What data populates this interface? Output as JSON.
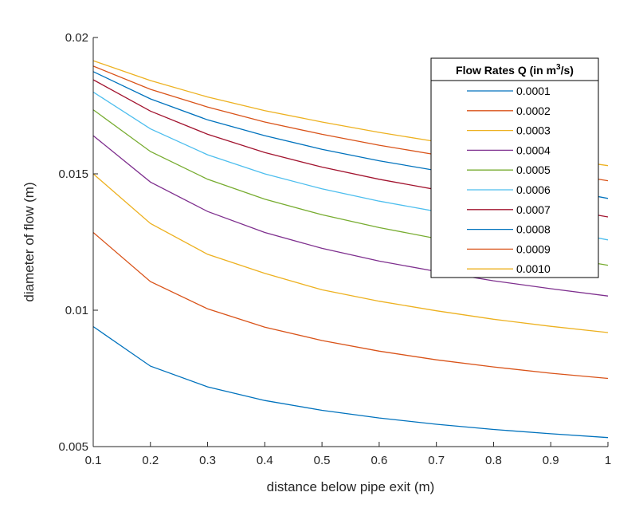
{
  "chart_data": {
    "type": "line",
    "title": "",
    "xlabel": "distance below pipe exit (m)",
    "ylabel": "diameter of flow (m)",
    "xlim": [
      0.1,
      1
    ],
    "ylim": [
      0.005,
      0.02
    ],
    "x_ticks": [
      "0.1",
      "0.2",
      "0.3",
      "0.4",
      "0.5",
      "0.6",
      "0.7",
      "0.8",
      "0.9",
      "1"
    ],
    "y_ticks": [
      "0.005",
      "0.01",
      "0.015",
      "0.02"
    ],
    "x": [
      0.1,
      0.2,
      0.3,
      0.4,
      0.5,
      0.6,
      0.7,
      0.8,
      0.9,
      1.0
    ],
    "legend": {
      "title_prefix": "Flow Rates Q (in m",
      "title_sup": "3",
      "title_suffix": "/s)",
      "location": "top-right"
    },
    "series": [
      {
        "name": "0.0001",
        "color": "#0072BD",
        "values": [
          0.0094,
          0.00795,
          0.00719,
          0.00669,
          0.00633,
          0.00605,
          0.00582,
          0.00563,
          0.00547,
          0.00533
        ]
      },
      {
        "name": "0.0002",
        "color": "#D95319",
        "values": [
          0.01285,
          0.01105,
          0.01005,
          0.00938,
          0.00889,
          0.0085,
          0.00818,
          0.00792,
          0.00769,
          0.0075
        ]
      },
      {
        "name": "0.0003",
        "color": "#EDB120",
        "values": [
          0.015,
          0.01318,
          0.01205,
          0.01135,
          0.01075,
          0.01033,
          0.00998,
          0.00967,
          0.00941,
          0.00918
        ]
      },
      {
        "name": "0.0004",
        "color": "#7E2F8E",
        "values": [
          0.0164,
          0.0147,
          0.01362,
          0.01285,
          0.01227,
          0.0118,
          0.01142,
          0.01108,
          0.01079,
          0.01052
        ]
      },
      {
        "name": "0.0005",
        "color": "#77AC30",
        "values": [
          0.01735,
          0.01582,
          0.0148,
          0.01407,
          0.0135,
          0.01303,
          0.01263,
          0.0123,
          0.012,
          0.01165
        ]
      },
      {
        "name": "0.0006",
        "color": "#4DBEEE",
        "values": [
          0.018,
          0.01665,
          0.0157,
          0.015,
          0.01445,
          0.014,
          0.01362,
          0.01328,
          0.01298,
          0.01258
        ]
      },
      {
        "name": "0.0007",
        "color": "#A2142F",
        "values": [
          0.01845,
          0.0173,
          0.01645,
          0.01578,
          0.01525,
          0.0148,
          0.01442,
          0.01408,
          0.01378,
          0.01342
        ]
      },
      {
        "name": "0.0008",
        "color": "#0072BD",
        "values": [
          0.01875,
          0.01775,
          0.01698,
          0.0164,
          0.0159,
          0.01548,
          0.01512,
          0.0148,
          0.0145,
          0.0141
        ]
      },
      {
        "name": "0.0009",
        "color": "#D95319",
        "values": [
          0.01895,
          0.0181,
          0.01745,
          0.0169,
          0.01645,
          0.01605,
          0.0157,
          0.01538,
          0.01508,
          0.01475
        ]
      },
      {
        "name": "0.0010",
        "color": "#EDB120",
        "values": [
          0.01915,
          0.01842,
          0.01782,
          0.01732,
          0.0169,
          0.01652,
          0.01618,
          0.01588,
          0.0156,
          0.0153
        ]
      }
    ]
  }
}
